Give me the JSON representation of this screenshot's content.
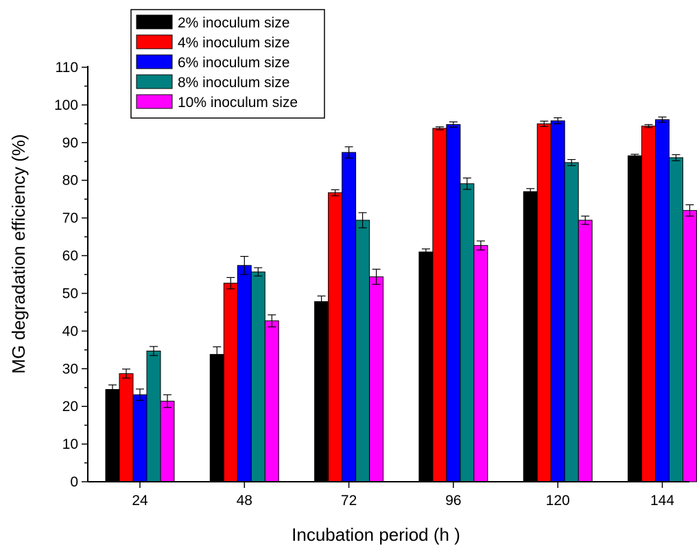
{
  "chart_data": {
    "type": "bar",
    "xlabel": "Incubation period (h )",
    "ylabel": "MG degradation efficiency (%)",
    "categories": [
      "24",
      "48",
      "72",
      "96",
      "120",
      "144"
    ],
    "ylim": [
      0,
      110
    ],
    "yticks": [
      "0",
      "10",
      "20",
      "30",
      "40",
      "50",
      "60",
      "70",
      "80",
      "90",
      "100",
      "110"
    ],
    "grid": false,
    "legend_position": "top-left",
    "series": [
      {
        "name": "2% inoculum size",
        "color": "#000000",
        "values": [
          24.5,
          33.8,
          47.8,
          61.0,
          77.0,
          86.5
        ],
        "errors": [
          1.2,
          2.0,
          1.5,
          0.8,
          0.8,
          0.4
        ]
      },
      {
        "name": "4% inoculum size",
        "color": "#ff0000",
        "values": [
          28.7,
          52.7,
          76.7,
          93.8,
          95.0,
          94.4
        ],
        "errors": [
          1.2,
          1.5,
          0.8,
          0.4,
          0.7,
          0.4
        ]
      },
      {
        "name": "6% inoculum size",
        "color": "#0000ff",
        "values": [
          23.1,
          57.4,
          87.4,
          94.8,
          95.8,
          96.1
        ],
        "errors": [
          1.5,
          2.4,
          1.5,
          0.7,
          0.8,
          0.7
        ]
      },
      {
        "name": "8% inoculum size",
        "color": "#008080",
        "values": [
          34.7,
          55.7,
          69.4,
          79.1,
          84.7,
          86.0
        ],
        "errors": [
          1.2,
          1.1,
          2.0,
          1.5,
          0.8,
          0.8
        ]
      },
      {
        "name": "10% inoculum size",
        "color": "#ff00ff",
        "values": [
          21.4,
          42.7,
          54.4,
          62.7,
          69.4,
          72.0
        ],
        "errors": [
          1.7,
          1.6,
          2.0,
          1.2,
          1.1,
          1.5
        ]
      }
    ]
  }
}
